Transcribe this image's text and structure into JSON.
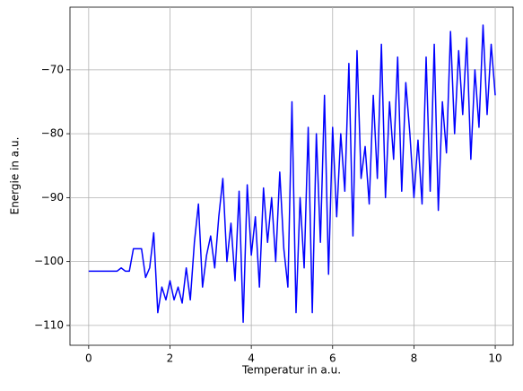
{
  "chart_data": {
    "type": "line",
    "xlabel": "Temperatur in a.u.",
    "ylabel": "Energie in a.u.",
    "x": [
      0,
      0.1,
      0.2,
      0.3,
      0.4,
      0.5,
      0.6,
      0.7,
      0.8,
      0.9,
      1,
      1.1,
      1.2,
      1.3,
      1.4,
      1.5,
      1.6,
      1.7,
      1.8,
      1.9,
      2,
      2.1,
      2.2,
      2.3,
      2.4,
      2.5,
      2.6,
      2.7,
      2.8,
      2.9,
      3,
      3.1,
      3.2,
      3.3,
      3.4,
      3.5,
      3.6,
      3.7,
      3.8,
      3.9,
      4,
      4.1,
      4.2,
      4.3,
      4.4,
      4.5,
      4.6,
      4.7,
      4.8,
      4.9,
      5,
      5.1,
      5.2,
      5.3,
      5.4,
      5.5,
      5.6,
      5.7,
      5.8,
      5.9,
      6,
      6.1,
      6.2,
      6.3,
      6.4,
      6.5,
      6.6,
      6.7,
      6.8,
      6.9,
      7,
      7.1,
      7.2,
      7.3,
      7.4,
      7.5,
      7.6,
      7.7,
      7.8,
      7.9,
      8,
      8.1,
      8.2,
      8.3,
      8.4,
      8.5,
      8.6,
      8.7,
      8.8,
      8.9,
      9,
      9.1,
      9.2,
      9.3,
      9.4,
      9.5,
      9.6,
      9.7,
      9.8,
      9.9,
      10
    ],
    "series": [
      {
        "name": "Energie",
        "color": "#0000ff",
        "values": [
          -101.5,
          -101.5,
          -101.5,
          -101.5,
          -101.5,
          -101.5,
          -101.5,
          -101.5,
          -101,
          -101.5,
          -101.5,
          -98,
          -98,
          -98,
          -102.5,
          -101,
          -95.5,
          -108,
          -104,
          -106,
          -103,
          -106,
          -104,
          -106.5,
          -101,
          -106,
          -97,
          -91,
          -104,
          -99,
          -96,
          -101,
          -93,
          -87,
          -100,
          -94,
          -103,
          -89,
          -109.5,
          -88,
          -99,
          -93,
          -104,
          -88.5,
          -97,
          -90,
          -100,
          -86,
          -98,
          -104,
          -75,
          -108,
          -90,
          -101,
          -79,
          -108,
          -80,
          -97,
          -74,
          -102,
          -79,
          -93,
          -80,
          -89,
          -69,
          -96,
          -67,
          -87,
          -82,
          -91,
          -74,
          -87,
          -66,
          -90,
          -75,
          -84,
          -68,
          -89,
          -72,
          -80,
          -90,
          -81,
          -91,
          -68,
          -89,
          -66,
          -92,
          -75,
          -83,
          -64,
          -80,
          -67,
          -77,
          -65,
          -84,
          -70,
          -79,
          -63,
          -77,
          -66,
          -74
        ]
      }
    ],
    "xlim": [
      -0.46,
      10.44
    ],
    "xticks": [
      0,
      2,
      4,
      6,
      8,
      10
    ],
    "ylim": [
      -113.1,
      -60.2
    ],
    "yticks": [
      {
        "value": -110,
        "label": "−110"
      },
      {
        "value": -100,
        "label": "−100"
      },
      {
        "value": -90,
        "label": "−90"
      },
      {
        "value": -80,
        "label": "−80"
      },
      {
        "value": -70,
        "label": "−70"
      }
    ],
    "grid": true
  }
}
